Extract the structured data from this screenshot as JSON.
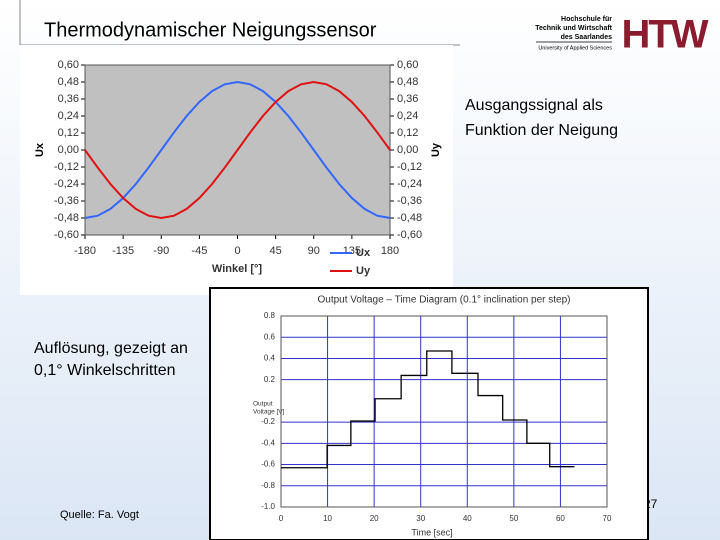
{
  "title": "Thermodynamischer Neigungssensor",
  "logo": {
    "mark": "HTW",
    "lines": [
      "Hochschule für",
      "Technik und Wirtschaft",
      "des Saarlandes"
    ],
    "subline": "University of Applied Sciences"
  },
  "caption_right": [
    "Ausgangssignal als",
    "Funktion der Neigung"
  ],
  "caption_left": [
    "Auflösung, gezeigt an",
    "0,1° Winkelschritten"
  ],
  "source": "Quelle: Fa. Vogt",
  "page_number": "27",
  "chart_data": [
    {
      "type": "line",
      "x_label": "Winkel [°]",
      "y_label": "Ux",
      "y2_label": "Uy",
      "xlim": [
        -180,
        180
      ],
      "xticks": [
        -180,
        -135,
        -90,
        -45,
        0,
        45,
        90,
        135,
        180
      ],
      "ylim": [
        -0.6,
        0.6
      ],
      "yticks": [
        {
          "value": 0.6,
          "label": "0,60"
        },
        {
          "value": 0.48,
          "label": "0,48"
        },
        {
          "value": 0.36,
          "label": "0,36"
        },
        {
          "value": 0.24,
          "label": "0,24"
        },
        {
          "value": 0.12,
          "label": "0,12"
        },
        {
          "value": 0,
          "label": "0,00"
        },
        {
          "value": -0.12,
          "label": "-0,12"
        },
        {
          "value": -0.24,
          "label": "-0,24"
        },
        {
          "value": -0.36,
          "label": "-0,36"
        },
        {
          "value": -0.48,
          "label": "-0,48"
        },
        {
          "value": -0.6,
          "label": "-0,60"
        }
      ],
      "y2lim": [
        -0.6,
        0.6
      ],
      "y2ticks": [
        {
          "value": 0.6,
          "label": "0,60"
        },
        {
          "value": 0.48,
          "label": "0,48"
        },
        {
          "value": 0.36,
          "label": "0,36"
        },
        {
          "value": 0.24,
          "label": "0,24"
        },
        {
          "value": 0.12,
          "label": "0,12"
        },
        {
          "value": 0,
          "label": "0,00"
        },
        {
          "value": -0.12,
          "label": "-0,12"
        },
        {
          "value": -0.24,
          "label": "-0,24"
        },
        {
          "value": -0.36,
          "label": "-0,36"
        },
        {
          "value": -0.48,
          "label": "-0,48"
        },
        {
          "value": -0.6,
          "label": "-0,60"
        }
      ],
      "grid": false,
      "plot_background": "#c0c0c0",
      "legend": "bottom-right",
      "x": [
        -180,
        -165,
        -150,
        -135,
        -120,
        -105,
        -90,
        -75,
        -60,
        -45,
        -30,
        -15,
        0,
        15,
        30,
        45,
        60,
        75,
        90,
        105,
        120,
        135,
        150,
        165,
        180
      ],
      "series": [
        {
          "name": "Ux",
          "color": "#3366ff",
          "values": [
            -0.48,
            -0.464,
            -0.416,
            -0.339,
            -0.24,
            -0.124,
            0,
            0.124,
            0.24,
            0.339,
            0.416,
            0.464,
            0.48,
            0.464,
            0.416,
            0.339,
            0.24,
            0.124,
            0,
            -0.124,
            -0.24,
            -0.339,
            -0.416,
            -0.464,
            -0.48
          ]
        },
        {
          "name": "Uy",
          "color": "#e01010",
          "axis": "y2",
          "values": [
            0,
            -0.124,
            -0.24,
            -0.339,
            -0.416,
            -0.464,
            -0.48,
            -0.464,
            -0.416,
            -0.339,
            -0.24,
            -0.124,
            0,
            0.124,
            0.24,
            0.339,
            0.416,
            0.464,
            0.48,
            0.464,
            0.416,
            0.339,
            0.24,
            0.124,
            0
          ]
        }
      ]
    },
    {
      "type": "line",
      "title": "Output Voltage – Time Diagram (0.1° inclination per step)",
      "x_label": "Time [sec]",
      "y_label_lines": [
        "Output",
        "Voltage [V]"
      ],
      "xlim": [
        0,
        70
      ],
      "xticks": [
        0,
        10,
        20,
        30,
        40,
        50,
        60,
        70
      ],
      "ylim": [
        -1,
        0.8
      ],
      "yticks": [
        0.8,
        0.6,
        0.4,
        0.2,
        -0.2,
        -0.4,
        -0.6,
        -0.8,
        {
          "value": -1,
          "label": "-1.0"
        }
      ],
      "grid": true,
      "grid_color": "#3333cc",
      "plot_background": "#ffffff",
      "x": [
        0,
        9.9,
        9.9,
        15,
        15,
        20.2,
        20.2,
        25.8,
        25.8,
        31.3,
        31.3,
        36.7,
        36.7,
        42.3,
        42.3,
        47.6,
        47.6,
        52.8,
        52.8,
        57.7,
        57.7,
        63
      ],
      "series": [
        {
          "color": "#000000",
          "values": [
            -0.63,
            -0.63,
            -0.42,
            -0.42,
            -0.19,
            -0.19,
            0.02,
            0.02,
            0.24,
            0.24,
            0.47,
            0.47,
            0.26,
            0.26,
            0.05,
            0.05,
            -0.18,
            -0.18,
            -0.4,
            -0.4,
            -0.62,
            -0.62
          ]
        }
      ]
    }
  ]
}
